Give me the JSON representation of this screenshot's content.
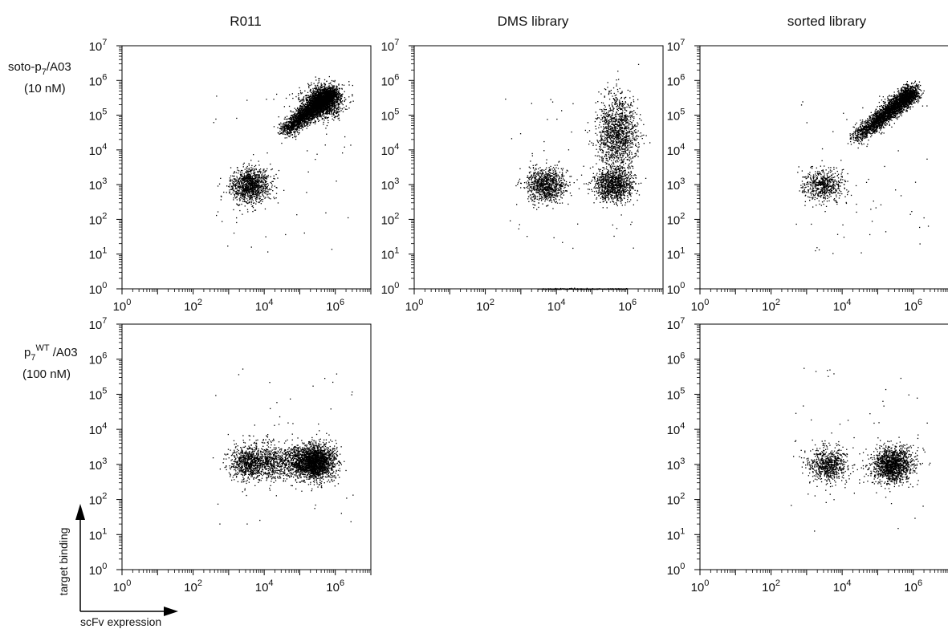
{
  "column_titles": [
    "R011",
    "DMS library",
    "sorted library"
  ],
  "row_labels": [
    {
      "line1_base": "soto-p",
      "line1_sub": "7",
      "line1_rest": "/A03",
      "line2": "(10 nM)"
    },
    {
      "line1_base": "p",
      "line1_sub": "7",
      "line1_sup": "WT",
      "line1_rest": " /A03",
      "line2": "(100 nM)"
    }
  ],
  "axis_labels": {
    "x": "scFv expression",
    "y": "target binding"
  },
  "tick_base": "10",
  "x_tick_exponents": [
    "0",
    "2",
    "4",
    "6"
  ],
  "y_tick_exponents": [
    "0",
    "1",
    "2",
    "3",
    "4",
    "5",
    "6",
    "7"
  ],
  "chart_data": [
    {
      "type": "scatter",
      "panel": "R011 / soto-p7/A03 (10 nM)",
      "xscale": "log",
      "yscale": "log",
      "xlim": [
        1,
        10000000
      ],
      "ylim": [
        1,
        10000000
      ],
      "grid": false,
      "clusters": [
        {
          "name": "non-expressing",
          "x": 4000,
          "y": 1000,
          "n": 1100
        },
        {
          "name": "binding diagonal",
          "x_range": [
            30000,
            800000
          ],
          "y_range": [
            30000,
            450000
          ],
          "n": 3000
        },
        {
          "name": "diagonal core",
          "x": 400000,
          "y": 250000,
          "n": 1300
        }
      ]
    },
    {
      "type": "scatter",
      "panel": "DMS library / soto-p7/A03 (10 nM)",
      "xscale": "log",
      "yscale": "log",
      "xlim": [
        1,
        10000000
      ],
      "ylim": [
        1,
        10000000
      ],
      "grid": false,
      "clusters": [
        {
          "name": "non-expressing",
          "x": 5000,
          "y": 1000,
          "n": 900
        },
        {
          "name": "expressing non-binder",
          "x": 400000,
          "y": 1000,
          "n": 1000
        },
        {
          "name": "expressing binder",
          "x": 500000,
          "y": 30000,
          "n": 1300
        },
        {
          "name": "baseline",
          "y": 1,
          "x_range": [
            3000,
            1000000
          ],
          "n": 250
        }
      ]
    },
    {
      "type": "scatter",
      "panel": "sorted library / soto-p7/A03 (10 nM)",
      "xscale": "log",
      "yscale": "log",
      "xlim": [
        1,
        10000000
      ],
      "ylim": [
        1,
        10000000
      ],
      "grid": false,
      "clusters": [
        {
          "name": "non-expressing",
          "x": 3000,
          "y": 1000,
          "n": 600
        },
        {
          "name": "binding diagonal",
          "x_range": [
            20000,
            1000000
          ],
          "y_range": [
            20000,
            500000
          ],
          "n": 3000
        }
      ]
    },
    {
      "type": "scatter",
      "panel": "R011 / p7WT/A03 (100 nM)",
      "xscale": "log",
      "yscale": "log",
      "xlim": [
        1,
        10000000
      ],
      "ylim": [
        1,
        10000000
      ],
      "grid": false,
      "clusters": [
        {
          "name": "non-expressing",
          "x": 4000,
          "y": 1200,
          "n": 900
        },
        {
          "name": "expressing",
          "x": 250000,
          "y": 1200,
          "n": 2200
        },
        {
          "name": "bridge",
          "x_range": [
            10000,
            100000
          ],
          "y": 1200,
          "n": 600
        }
      ]
    },
    {
      "type": "scatter",
      "panel": "sorted library / p7WT/A03 (100 nM)",
      "xscale": "log",
      "yscale": "log",
      "xlim": [
        1,
        10000000
      ],
      "ylim": [
        1,
        10000000
      ],
      "grid": false,
      "clusters": [
        {
          "name": "non-expressing",
          "x": 4000,
          "y": 1000,
          "n": 700
        },
        {
          "name": "expressing",
          "x": 250000,
          "y": 1000,
          "n": 1400
        }
      ]
    }
  ]
}
